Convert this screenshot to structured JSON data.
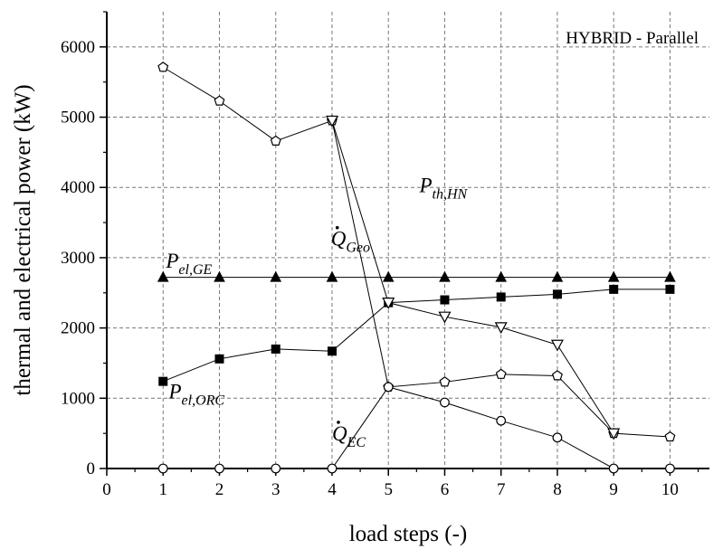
{
  "chart_data": {
    "type": "line",
    "title": "",
    "inset_title": "HYBRID - Parallel",
    "xlabel": "load steps (-)",
    "ylabel": "thermal and electrical power (kW)",
    "xlim": [
      0,
      10.7
    ],
    "ylim": [
      0,
      6500
    ],
    "x_ticks": [
      0,
      1,
      2,
      3,
      4,
      5,
      6,
      7,
      8,
      9,
      10
    ],
    "y_ticks": [
      0,
      1000,
      2000,
      3000,
      4000,
      5000,
      6000
    ],
    "grid": "dashed",
    "x": [
      1,
      2,
      3,
      4,
      5,
      6,
      7,
      8,
      9,
      10
    ],
    "series": [
      {
        "name": "P_th,HN",
        "marker": "pentagon-open",
        "values": [
          5710,
          5230,
          4660,
          4950,
          1160,
          1230,
          1340,
          1320,
          500,
          450
        ]
      },
      {
        "name": "P_el,GE",
        "marker": "triangle-up-filled",
        "values": [
          2720,
          2720,
          2720,
          2720,
          2720,
          2720,
          2720,
          2720,
          2720,
          2720
        ]
      },
      {
        "name": "P_el,ORC",
        "marker": "square-filled",
        "values": [
          1240,
          1560,
          1700,
          1670,
          2360,
          2400,
          2440,
          2480,
          2550,
          2550
        ]
      },
      {
        "name": "Q_Geo",
        "marker": "triangle-down-open",
        "values": [
          null,
          null,
          null,
          4950,
          2360,
          2160,
          2010,
          1760,
          500,
          null
        ]
      },
      {
        "name": "Q_EC",
        "marker": "circle-open",
        "values": [
          0,
          0,
          0,
          0,
          1160,
          940,
          680,
          440,
          0,
          0
        ]
      }
    ],
    "annotations": [
      {
        "series": "P_th,HN",
        "main": "P",
        "sub": "th,HN",
        "dot": false,
        "at": [
          5.55,
          3930
        ]
      },
      {
        "series": "P_el,GE",
        "main": "P",
        "sub": "el,GE",
        "dot": false,
        "at": [
          1.05,
          2860
        ]
      },
      {
        "series": "P_el,ORC",
        "main": "P",
        "sub": "el,ORC",
        "dot": false,
        "at": [
          1.1,
          1000
        ]
      },
      {
        "series": "Q_Geo",
        "main": "Q",
        "sub": "Geo",
        "dot": true,
        "at": [
          3.98,
          3170
        ]
      },
      {
        "series": "Q_EC",
        "main": "Q",
        "sub": "EC",
        "dot": true,
        "at": [
          4.0,
          400
        ]
      }
    ]
  }
}
